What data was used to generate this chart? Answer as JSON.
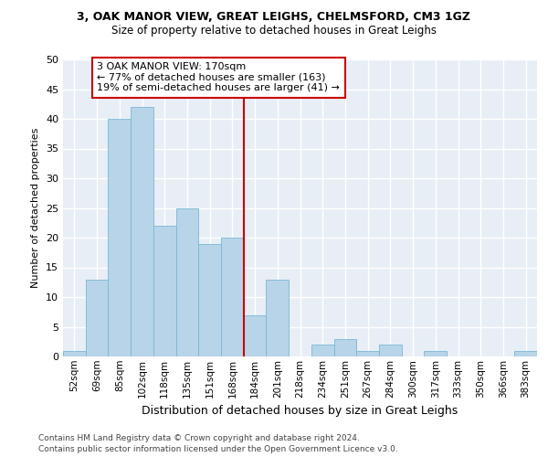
{
  "title_line1": "3, OAK MANOR VIEW, GREAT LEIGHS, CHELMSFORD, CM3 1GZ",
  "title_line2": "Size of property relative to detached houses in Great Leighs",
  "xlabel": "Distribution of detached houses by size in Great Leighs",
  "ylabel": "Number of detached properties",
  "categories": [
    "52sqm",
    "69sqm",
    "85sqm",
    "102sqm",
    "118sqm",
    "135sqm",
    "151sqm",
    "168sqm",
    "184sqm",
    "201sqm",
    "218sqm",
    "234sqm",
    "251sqm",
    "267sqm",
    "284sqm",
    "300sqm",
    "317sqm",
    "333sqm",
    "350sqm",
    "366sqm",
    "383sqm"
  ],
  "values": [
    1,
    13,
    40,
    42,
    22,
    25,
    19,
    20,
    7,
    13,
    0,
    2,
    3,
    1,
    2,
    0,
    1,
    0,
    0,
    0,
    1
  ],
  "bar_color": "#b8d4e8",
  "bar_edge_color": "#7ab8d4",
  "marker_color": "#cc0000",
  "annotation_text": "3 OAK MANOR VIEW: 170sqm\n← 77% of detached houses are smaller (163)\n19% of semi-detached houses are larger (41) →",
  "annotation_box_facecolor": "#ffffff",
  "annotation_box_edgecolor": "#cc0000",
  "ylim": [
    0,
    50
  ],
  "yticks": [
    0,
    5,
    10,
    15,
    20,
    25,
    30,
    35,
    40,
    45,
    50
  ],
  "background_color": "#e8eef5",
  "footer_line1": "Contains HM Land Registry data © Crown copyright and database right 2024.",
  "footer_line2": "Contains public sector information licensed under the Open Government Licence v3.0.",
  "title_fontsize": 9,
  "subtitle_fontsize": 8.5,
  "ylabel_fontsize": 8,
  "xlabel_fontsize": 9,
  "tick_fontsize": 7.5,
  "ytick_fontsize": 8,
  "footer_fontsize": 6.5,
  "annot_fontsize": 8
}
